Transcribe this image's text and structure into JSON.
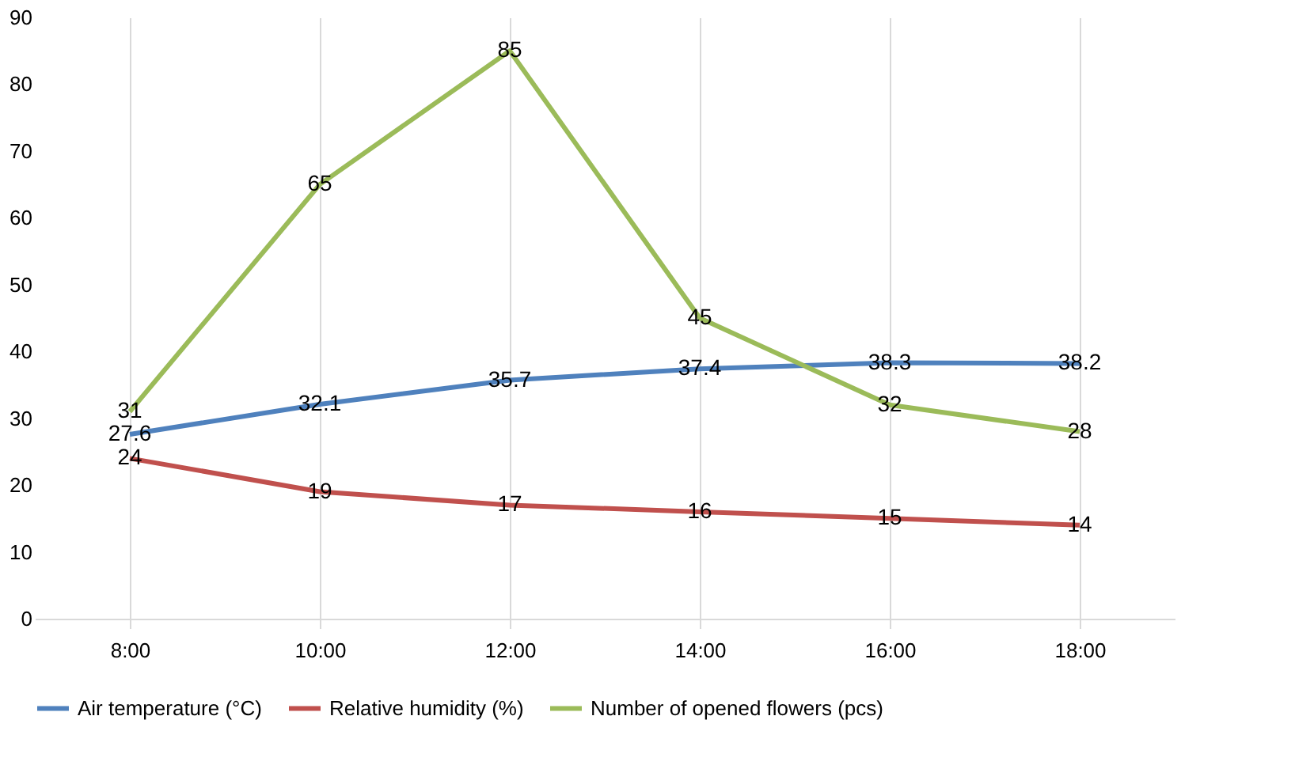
{
  "chart_data": {
    "type": "line",
    "categories": [
      "8:00",
      "10:00",
      "12:00",
      "14:00",
      "16:00",
      "18:00"
    ],
    "series": [
      {
        "name": "Air temperature (°C)",
        "color": "#4f81bd",
        "values": [
          27.6,
          32.1,
          35.7,
          37.4,
          38.3,
          38.2
        ]
      },
      {
        "name": "Relative humidity (%)",
        "color": "#c0504d",
        "values": [
          24,
          19,
          17,
          16,
          15,
          14
        ]
      },
      {
        "name": "Number of opened flowers (pcs)",
        "color": "#9bbb59",
        "values": [
          31,
          65,
          85,
          45,
          32,
          28
        ]
      }
    ],
    "ylim": [
      0,
      90
    ],
    "yticks": [
      0,
      10,
      20,
      30,
      40,
      50,
      60,
      70,
      80,
      90
    ],
    "grid": "x",
    "legend": "bottom",
    "data_labels": true,
    "marker": "none",
    "line_style": "solid"
  }
}
